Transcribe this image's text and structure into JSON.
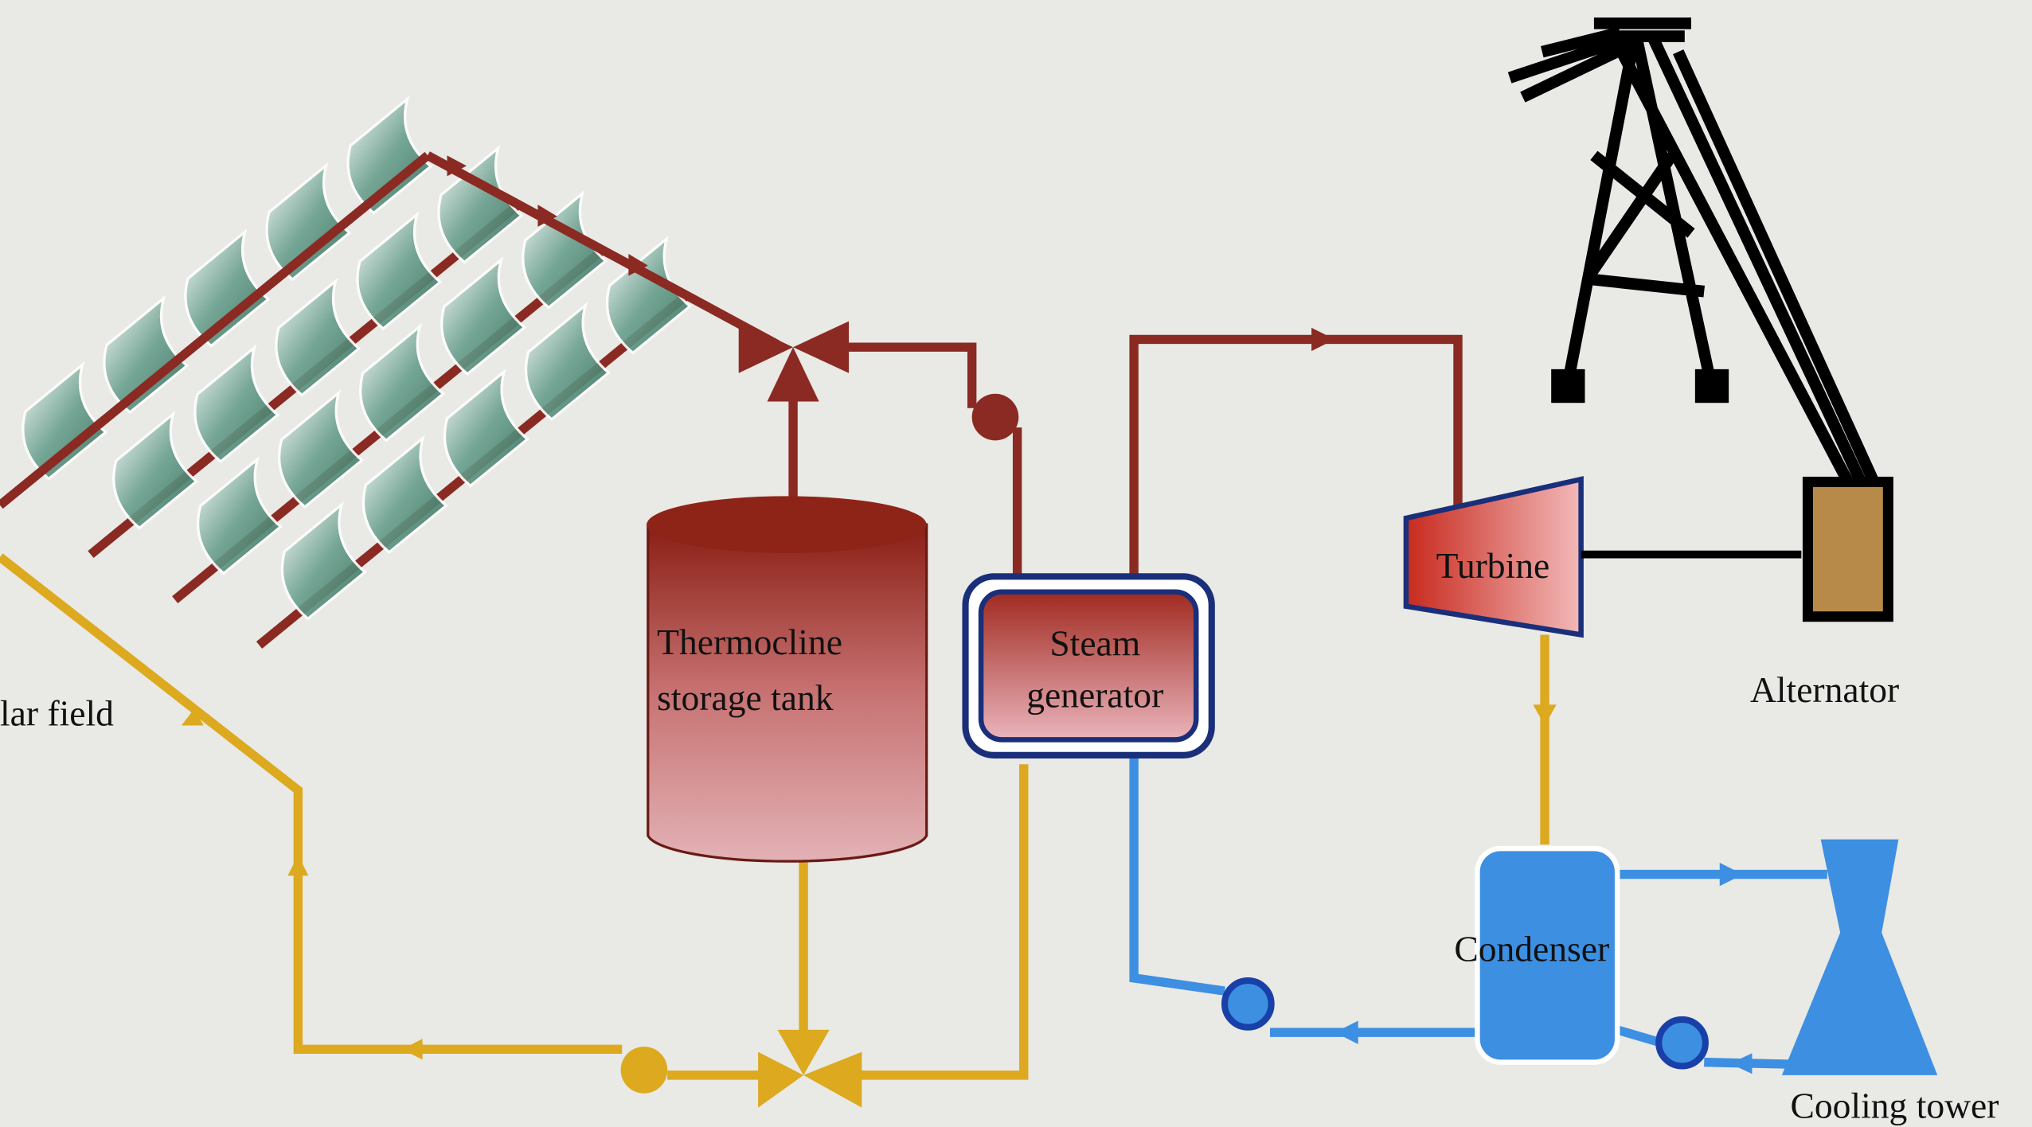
{
  "nodes": [
    {
      "id": "solar-field",
      "lines": [
        "lar field"
      ]
    },
    {
      "id": "tank",
      "lines": [
        "Thermocline",
        "storage tank"
      ]
    },
    {
      "id": "steam-generator",
      "lines": [
        "Steam",
        "generator"
      ]
    },
    {
      "id": "turbine",
      "lines": [
        "Turbine"
      ]
    },
    {
      "id": "alternator",
      "lines": [
        "Alternator"
      ]
    },
    {
      "id": "condenser",
      "lines": [
        "Condenser"
      ]
    },
    {
      "id": "cooling-tower",
      "lines": [
        "Cooling tower"
      ]
    }
  ]
}
